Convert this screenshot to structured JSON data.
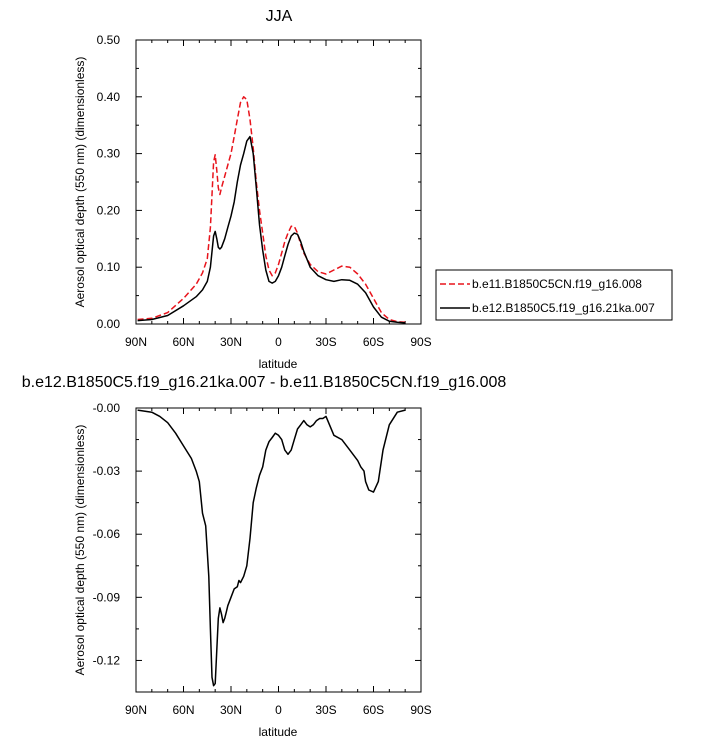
{
  "chart_data": [
    {
      "type": "line",
      "title": "JJA",
      "xlabel": "latitude",
      "ylabel": "Aerosol optical depth (550 nm) (dimensionless)",
      "xlim": [
        90,
        -90
      ],
      "ylim": [
        0.0,
        0.5
      ],
      "x_ticks": [
        90,
        60,
        30,
        0,
        -30,
        -60,
        -90
      ],
      "x_tick_labels": [
        "90N",
        "60N",
        "30N",
        "0",
        "30S",
        "60S",
        "90S"
      ],
      "y_ticks": [
        0.0,
        0.1,
        0.2,
        0.3,
        0.4,
        0.5
      ],
      "y_tick_labels": [
        "0.00",
        "0.10",
        "0.20",
        "0.30",
        "0.40",
        "0.50"
      ],
      "grid": false,
      "legend_position": "right",
      "series": [
        {
          "name": "b.e11.B1850C5CN.f19_g16.008",
          "color": "#e8141c",
          "dash": "dashed",
          "x": [
            89,
            80,
            70,
            60,
            52,
            48,
            45,
            43,
            41,
            40,
            39,
            38,
            37,
            36,
            34,
            32,
            30,
            28,
            26,
            24,
            22,
            20,
            18,
            16,
            14,
            12,
            10,
            8,
            6,
            4,
            2,
            0,
            -2,
            -4,
            -6,
            -8,
            -10,
            -12,
            -14,
            -16,
            -20,
            -25,
            -30,
            -35,
            -40,
            -45,
            -50,
            -55,
            -60,
            -65,
            -70,
            -75,
            -80
          ],
          "y": [
            0.008,
            0.01,
            0.02,
            0.045,
            0.07,
            0.09,
            0.115,
            0.17,
            0.285,
            0.298,
            0.27,
            0.24,
            0.228,
            0.24,
            0.26,
            0.28,
            0.3,
            0.33,
            0.36,
            0.39,
            0.4,
            0.395,
            0.36,
            0.31,
            0.25,
            0.2,
            0.16,
            0.12,
            0.095,
            0.085,
            0.09,
            0.105,
            0.125,
            0.145,
            0.16,
            0.172,
            0.172,
            0.16,
            0.14,
            0.125,
            0.105,
            0.092,
            0.088,
            0.095,
            0.102,
            0.1,
            0.088,
            0.07,
            0.045,
            0.02,
            0.008,
            0.004,
            0.003
          ]
        },
        {
          "name": "b.e12.B1850C5.f19_g16.21ka.007",
          "color": "#000000",
          "dash": "solid",
          "x": [
            89,
            80,
            70,
            60,
            52,
            48,
            45,
            43,
            41,
            40,
            39,
            38,
            37,
            36,
            34,
            32,
            30,
            28,
            26,
            24,
            22,
            20,
            18,
            16,
            14,
            12,
            10,
            8,
            6,
            4,
            2,
            0,
            -2,
            -4,
            -6,
            -8,
            -10,
            -12,
            -14,
            -16,
            -20,
            -25,
            -30,
            -35,
            -40,
            -45,
            -50,
            -55,
            -60,
            -65,
            -70,
            -75,
            -80
          ],
          "y": [
            0.006,
            0.008,
            0.015,
            0.032,
            0.048,
            0.06,
            0.075,
            0.1,
            0.155,
            0.163,
            0.15,
            0.135,
            0.132,
            0.135,
            0.15,
            0.17,
            0.19,
            0.215,
            0.25,
            0.28,
            0.3,
            0.322,
            0.33,
            0.3,
            0.24,
            0.175,
            0.13,
            0.095,
            0.075,
            0.072,
            0.075,
            0.085,
            0.1,
            0.12,
            0.14,
            0.155,
            0.16,
            0.158,
            0.145,
            0.128,
            0.1,
            0.085,
            0.078,
            0.075,
            0.078,
            0.077,
            0.07,
            0.055,
            0.03,
            0.012,
            0.005,
            0.003,
            0.002
          ]
        }
      ]
    },
    {
      "type": "line",
      "title": "b.e12.B1850C5.f19_g16.21ka.007 - b.e11.B1850C5CN.f19_g16.008",
      "xlabel": "latitude",
      "ylabel": "Aerosol optical depth (550 nm) (dimensionless)",
      "xlim": [
        90,
        -90
      ],
      "ylim": [
        -0.135,
        0.0
      ],
      "x_ticks": [
        90,
        60,
        30,
        0,
        -30,
        -60,
        -90
      ],
      "x_tick_labels": [
        "90N",
        "60N",
        "30N",
        "0",
        "30S",
        "60S",
        "90S"
      ],
      "y_ticks": [
        0.0,
        -0.03,
        -0.06,
        -0.09,
        -0.12
      ],
      "y_tick_labels": [
        "-0.00",
        "-0.03",
        "-0.06",
        "-0.09",
        "-0.12"
      ],
      "grid": false,
      "series": [
        {
          "color": "#000000",
          "dash": "solid",
          "x": [
            89,
            80,
            75,
            70,
            65,
            60,
            55,
            52,
            50,
            48,
            46,
            44,
            43,
            42,
            41,
            40,
            39,
            38,
            37,
            36,
            35,
            34,
            33,
            32,
            30,
            28,
            26,
            25,
            24,
            22,
            20,
            18,
            16,
            14,
            12,
            10,
            8,
            6,
            4,
            2,
            0,
            -2,
            -4,
            -6,
            -8,
            -10,
            -12,
            -14,
            -16,
            -18,
            -20,
            -22,
            -24,
            -26,
            -28,
            -30,
            -35,
            -40,
            -45,
            -50,
            -52,
            -54,
            -55,
            -57,
            -60,
            -63,
            -66,
            -70,
            -75,
            -80
          ],
          "y": [
            -0.001,
            -0.002,
            -0.004,
            -0.007,
            -0.012,
            -0.018,
            -0.024,
            -0.03,
            -0.035,
            -0.05,
            -0.056,
            -0.08,
            -0.105,
            -0.128,
            -0.132,
            -0.131,
            -0.115,
            -0.1,
            -0.095,
            -0.098,
            -0.102,
            -0.1,
            -0.097,
            -0.094,
            -0.09,
            -0.086,
            -0.085,
            -0.082,
            -0.083,
            -0.08,
            -0.075,
            -0.062,
            -0.045,
            -0.038,
            -0.032,
            -0.028,
            -0.02,
            -0.016,
            -0.014,
            -0.012,
            -0.013,
            -0.015,
            -0.02,
            -0.022,
            -0.02,
            -0.015,
            -0.01,
            -0.008,
            -0.006,
            -0.008,
            -0.009,
            -0.008,
            -0.006,
            -0.005,
            -0.005,
            -0.004,
            -0.013,
            -0.015,
            -0.02,
            -0.025,
            -0.028,
            -0.03,
            -0.035,
            -0.039,
            -0.04,
            -0.035,
            -0.02,
            -0.008,
            -0.002,
            -0.001
          ]
        }
      ]
    }
  ]
}
